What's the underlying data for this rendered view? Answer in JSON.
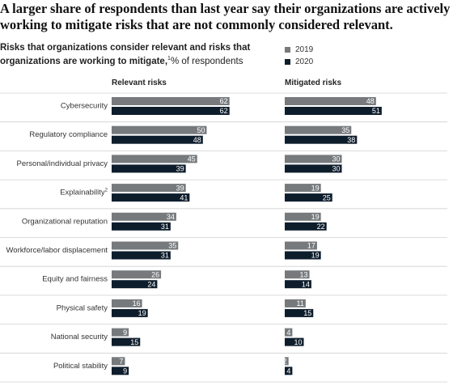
{
  "headline": "A larger share of respondents than last year say their organizations are actively working to mitigate risks that are not commonly considered relevant.",
  "subtitle": {
    "bold": "Risks that organizations consider relevant and risks that organizations are working to mitigate,",
    "footnote": "1",
    "rest": "% of respondents"
  },
  "colors": {
    "y2019": "#767a7d",
    "y2020": "#0e1d2c"
  },
  "chart_data": {
    "type": "bar",
    "orientation": "horizontal",
    "legend_position": "top-right",
    "categories": [
      "Cybersecurity",
      "Regulatory compliance",
      "Personal/individual privacy",
      "Explainability",
      "Organizational reputation",
      "Workforce/labor displacement",
      "Equity and fairness",
      "Physical safety",
      "National security",
      "Political stability"
    ],
    "category_footnotes": [
      "",
      "",
      "",
      "2",
      "",
      "",
      "",
      "",
      "",
      ""
    ],
    "series_names": [
      "2019",
      "2020"
    ],
    "panels": [
      {
        "title": "Relevant risks",
        "series": [
          {
            "name": "2019",
            "values": [
              62,
              50,
              45,
              39,
              34,
              35,
              26,
              16,
              9,
              7
            ]
          },
          {
            "name": "2020",
            "values": [
              62,
              48,
              39,
              41,
              31,
              31,
              24,
              19,
              15,
              9
            ]
          }
        ]
      },
      {
        "title": "Mitigated risks",
        "series": [
          {
            "name": "2019",
            "values": [
              48,
              35,
              30,
              19,
              19,
              17,
              13,
              11,
              4,
              2
            ]
          },
          {
            "name": "2020",
            "values": [
              51,
              38,
              30,
              25,
              22,
              19,
              14,
              15,
              10,
              4
            ]
          }
        ]
      }
    ]
  }
}
